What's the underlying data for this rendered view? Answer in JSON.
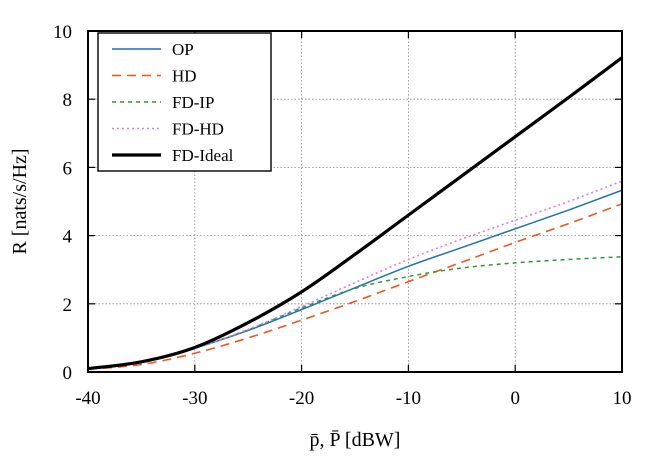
{
  "chart_data": {
    "type": "line",
    "xlabel": "p̄, P̄ [dBW]",
    "ylabel": "R [nats/s/Hz]",
    "xlim": [
      -40,
      10
    ],
    "ylim": [
      0,
      10
    ],
    "xticks": [
      -40,
      -30,
      -20,
      -10,
      0,
      10
    ],
    "yticks": [
      0,
      2,
      4,
      6,
      8,
      10
    ],
    "xtick_labels": [
      "-40",
      "-30",
      "-20",
      "-10",
      "0",
      "10"
    ],
    "ytick_labels": [
      "0",
      "2",
      "4",
      "6",
      "8",
      "10"
    ],
    "grid": true,
    "legend_position": "top-left",
    "x": [
      -40,
      -35,
      -30,
      -25,
      -20,
      -15,
      -10,
      -5,
      0,
      5,
      10
    ],
    "series": [
      {
        "name": "OP",
        "color": "#1f6fb2",
        "dash": "solid",
        "values": [
          0.1,
          0.28,
          0.7,
          1.22,
          1.83,
          2.47,
          3.1,
          3.65,
          4.2,
          4.75,
          5.33
        ]
      },
      {
        "name": "HD",
        "color": "#f0541f",
        "dash": "long-dash",
        "values": [
          0.08,
          0.22,
          0.55,
          1.0,
          1.52,
          2.07,
          2.65,
          3.22,
          3.8,
          4.35,
          4.93
        ]
      },
      {
        "name": "FD-IP",
        "color": "#2e9a2e",
        "dash": "short-dash",
        "values": [
          0.1,
          0.28,
          0.7,
          1.24,
          1.88,
          2.45,
          2.8,
          3.05,
          3.2,
          3.3,
          3.38
        ]
      },
      {
        "name": "FD-HD",
        "color": "#e07ae8",
        "dash": "dot",
        "values": [
          0.1,
          0.28,
          0.7,
          1.25,
          1.92,
          2.62,
          3.3,
          3.9,
          4.45,
          5.0,
          5.6
        ]
      },
      {
        "name": "FD-Ideal",
        "color": "#000000",
        "dash": "solid-thick",
        "values": [
          0.1,
          0.3,
          0.72,
          1.45,
          2.35,
          3.45,
          4.6,
          5.75,
          6.9,
          8.05,
          9.22
        ]
      }
    ]
  }
}
